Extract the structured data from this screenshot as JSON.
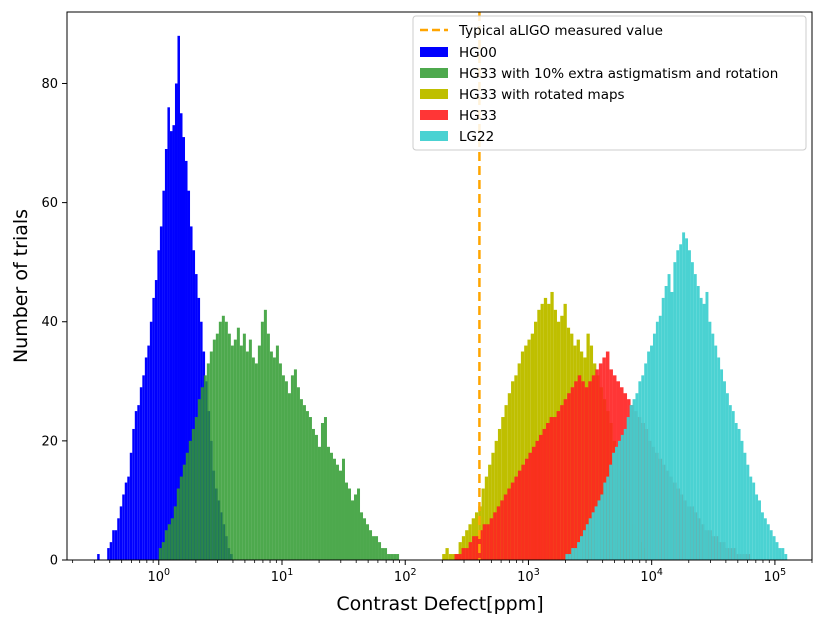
{
  "chart_data": {
    "type": "bar",
    "subtype": "overlaid-histogram",
    "xscale": "log",
    "xlabel": "Contrast Defect[ppm]",
    "ylabel": "Number of trials",
    "xlim": [
      0.18,
      200000
    ],
    "ylim": [
      0,
      92
    ],
    "yticks": [
      0,
      20,
      40,
      60,
      80
    ],
    "xticks": [
      {
        "value": 1,
        "base": "10",
        "exp": "0"
      },
      {
        "value": 10,
        "base": "10",
        "exp": "1"
      },
      {
        "value": 100,
        "base": "10",
        "exp": "2"
      },
      {
        "value": 1000,
        "base": "10",
        "exp": "3"
      },
      {
        "value": 10000,
        "base": "10",
        "exp": "4"
      },
      {
        "value": 100000,
        "base": "10",
        "exp": "5"
      }
    ],
    "vline": {
      "x": 400,
      "label": "Typical aLIGO measured value",
      "color": "#ffa500"
    },
    "legend_position": "top-right",
    "series": [
      {
        "name": "HG00",
        "color": "#0000ff",
        "opacity": 1.0,
        "log10_range": [
          -0.5,
          0.6
        ],
        "counts": [
          1,
          0,
          0,
          0,
          2,
          3,
          5,
          5,
          7,
          9,
          11,
          13,
          14,
          18,
          22,
          25,
          26,
          29,
          31,
          34,
          36,
          40,
          44,
          47,
          52,
          56,
          62,
          69,
          76,
          72,
          73,
          80,
          88,
          75,
          71,
          67,
          62,
          56,
          52,
          48,
          44,
          40,
          35,
          30,
          25,
          20,
          15,
          12,
          10,
          8,
          6,
          4,
          2,
          1
        ]
      },
      {
        "name": "HG33 with 10% extra astigmatism and rotation",
        "color": "#2e9a2e",
        "opacity": 0.85,
        "log10_range": [
          0.0,
          1.95
        ],
        "counts": [
          2,
          3,
          5,
          6,
          7,
          9,
          12,
          14,
          16,
          18,
          20,
          22,
          24,
          27,
          29,
          31,
          33,
          35,
          37,
          38,
          40,
          41,
          40,
          38,
          36,
          37,
          39,
          36,
          38,
          35,
          37,
          34,
          33,
          36,
          40,
          42,
          38,
          35,
          34,
          36,
          33,
          31,
          30,
          28,
          31,
          32,
          29,
          27,
          26,
          25,
          24,
          22,
          21,
          19,
          23,
          24,
          19,
          18,
          17,
          16,
          15,
          17,
          13,
          12,
          10,
          11,
          12,
          8,
          7,
          6,
          5,
          4,
          4,
          3,
          2,
          2,
          1,
          1,
          1,
          1
        ]
      },
      {
        "name": "HG33 with rotated maps",
        "color": "#bfbf00",
        "opacity": 1.0,
        "log10_range": [
          2.3,
          3.95
        ],
        "counts": [
          1,
          2,
          1,
          1,
          1,
          3,
          4,
          5,
          6,
          7,
          8,
          9,
          12,
          14,
          16,
          18,
          20,
          22,
          24,
          26,
          28,
          30,
          31,
          33,
          35,
          36,
          37,
          38,
          40,
          42,
          43,
          44,
          43,
          45,
          42,
          40,
          41,
          43,
          39,
          38,
          36,
          37,
          35,
          34,
          38,
          36,
          33,
          31,
          29,
          27,
          25,
          23,
          20,
          18,
          15,
          12,
          10,
          8,
          6,
          4,
          3,
          2
        ]
      },
      {
        "name": "HG33",
        "color": "#ff2020",
        "opacity": 0.9,
        "log10_range": [
          2.4,
          4.8
        ],
        "counts": [
          1,
          1,
          2,
          2,
          3,
          4,
          4,
          5,
          6,
          6,
          7,
          8,
          9,
          10,
          11,
          12,
          13,
          14,
          15,
          16,
          17,
          18,
          19,
          20,
          21,
          22,
          23,
          24,
          24,
          25,
          26,
          27,
          28,
          29,
          30,
          31,
          30,
          29,
          30,
          31,
          32,
          33,
          34,
          35,
          32,
          31,
          30,
          29,
          28,
          27,
          26,
          25,
          24,
          23,
          22,
          20,
          19,
          18,
          17,
          16,
          15,
          14,
          13,
          12,
          11,
          10,
          9,
          9,
          8,
          7,
          6,
          5,
          5,
          4,
          4,
          3,
          3,
          2,
          2,
          2,
          1,
          1,
          1,
          1
        ]
      },
      {
        "name": "LG22",
        "color": "#40d0d0",
        "opacity": 0.95,
        "log10_range": [
          3.3,
          5.1
        ],
        "counts": [
          1,
          1,
          2,
          2,
          3,
          4,
          5,
          6,
          7,
          8,
          9,
          10,
          11,
          13,
          14,
          16,
          18,
          19,
          20,
          21,
          22,
          24,
          26,
          27,
          28,
          30,
          31,
          33,
          35,
          36,
          38,
          40,
          41,
          44,
          46,
          48,
          45,
          50,
          52,
          53,
          55,
          54,
          52,
          50,
          48,
          46,
          44,
          43,
          45,
          40,
          38,
          36,
          34,
          32,
          30,
          28,
          26,
          25,
          23,
          22,
          20,
          18,
          16,
          14,
          13,
          11,
          10,
          8,
          7,
          6,
          5,
          4,
          3,
          2,
          2,
          1
        ]
      }
    ]
  }
}
